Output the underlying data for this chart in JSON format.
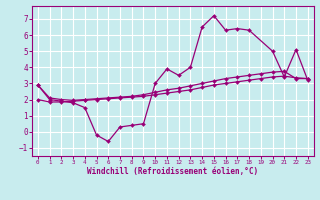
{
  "xlabel": "Windchill (Refroidissement éolien,°C)",
  "background_color": "#c8ecee",
  "grid_color": "#ffffff",
  "line_color": "#990077",
  "x_data": [
    0,
    1,
    2,
    3,
    4,
    5,
    6,
    7,
    8,
    9,
    10,
    11,
    12,
    13,
    14,
    15,
    16,
    17,
    18,
    19,
    20,
    21,
    22,
    23
  ],
  "line1_y": [
    2.9,
    2.0,
    1.9,
    1.8,
    1.5,
    -0.2,
    -0.6,
    0.3,
    0.4,
    0.5,
    3.0,
    3.9,
    3.5,
    4.0,
    6.5,
    7.2,
    6.3,
    6.4,
    6.3,
    null,
    5.0,
    3.4,
    5.1,
    3.2
  ],
  "line2_y": [
    2.0,
    1.85,
    1.85,
    1.9,
    1.95,
    2.0,
    2.05,
    2.1,
    2.15,
    2.2,
    2.3,
    2.4,
    2.5,
    2.6,
    2.75,
    2.9,
    3.0,
    3.1,
    3.2,
    3.3,
    3.4,
    3.45,
    3.35,
    3.3
  ],
  "line3_y": [
    2.9,
    2.1,
    2.0,
    1.95,
    2.0,
    2.05,
    2.1,
    2.15,
    2.2,
    2.3,
    2.45,
    2.6,
    2.7,
    2.85,
    3.0,
    3.15,
    3.3,
    3.4,
    3.5,
    3.6,
    3.7,
    3.75,
    3.3,
    3.3
  ],
  "ylim": [
    -1.5,
    7.8
  ],
  "xlim": [
    -0.5,
    23.5
  ],
  "yticks": [
    -1,
    0,
    1,
    2,
    3,
    4,
    5,
    6,
    7
  ],
  "xticks": [
    0,
    1,
    2,
    3,
    4,
    5,
    6,
    7,
    8,
    9,
    10,
    11,
    12,
    13,
    14,
    15,
    16,
    17,
    18,
    19,
    20,
    21,
    22,
    23
  ]
}
